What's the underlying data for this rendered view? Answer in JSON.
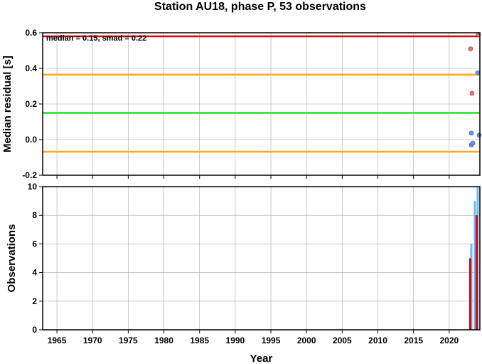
{
  "chart_data": [
    {
      "type": "scatter",
      "title": "Station AU18, phase P, 53 observations",
      "annotation": "median = 0.15, smad = 0.22",
      "xlabel": "",
      "ylabel": "Median residual [s]",
      "xlim": [
        1963,
        2024.3
      ],
      "ylim": [
        -0.2,
        0.6
      ],
      "yticks": [
        "-0.2",
        "0.0",
        "0.2",
        "0.4",
        "0.6"
      ],
      "grid": true,
      "reference_lines": [
        {
          "value": 0.58,
          "color": "#e00000"
        },
        {
          "value": 0.365,
          "color": "#ffa726"
        },
        {
          "value": 0.15,
          "color": "#22e022"
        },
        {
          "value": -0.068,
          "color": "#ffa726"
        }
      ],
      "series": [
        {
          "color": "#ff6b6b",
          "x": [
            2023.0,
            2023.2,
            2024.1
          ],
          "y": [
            0.51,
            0.26,
            0.59
          ]
        },
        {
          "color": "#5599ff",
          "x": [
            2023.1,
            2023.3,
            2023.1,
            2024.0,
            2024.2
          ],
          "y": [
            -0.03,
            -0.02,
            0.037,
            0.375,
            0.025
          ]
        }
      ]
    },
    {
      "type": "bar",
      "title": "",
      "xlabel": "Year",
      "ylabel": "Observations",
      "xlim": [
        1963,
        2024.3
      ],
      "ylim": [
        0,
        10
      ],
      "xticks": [
        "1965",
        "1970",
        "1975",
        "1980",
        "1985",
        "1990",
        "1995",
        "2000",
        "2005",
        "2010",
        "2015",
        "2020"
      ],
      "yticks": [
        "0",
        "2",
        "4",
        "6",
        "8",
        "10"
      ],
      "grid": true,
      "series": [
        {
          "color": "#66bbff",
          "x": [
            2023.1,
            2023.6,
            2024.0
          ],
          "values": [
            6,
            9,
            10
          ]
        },
        {
          "color": "#e00000",
          "x": [
            2022.95,
            2023.85
          ],
          "values": [
            5,
            8
          ]
        }
      ]
    }
  ]
}
